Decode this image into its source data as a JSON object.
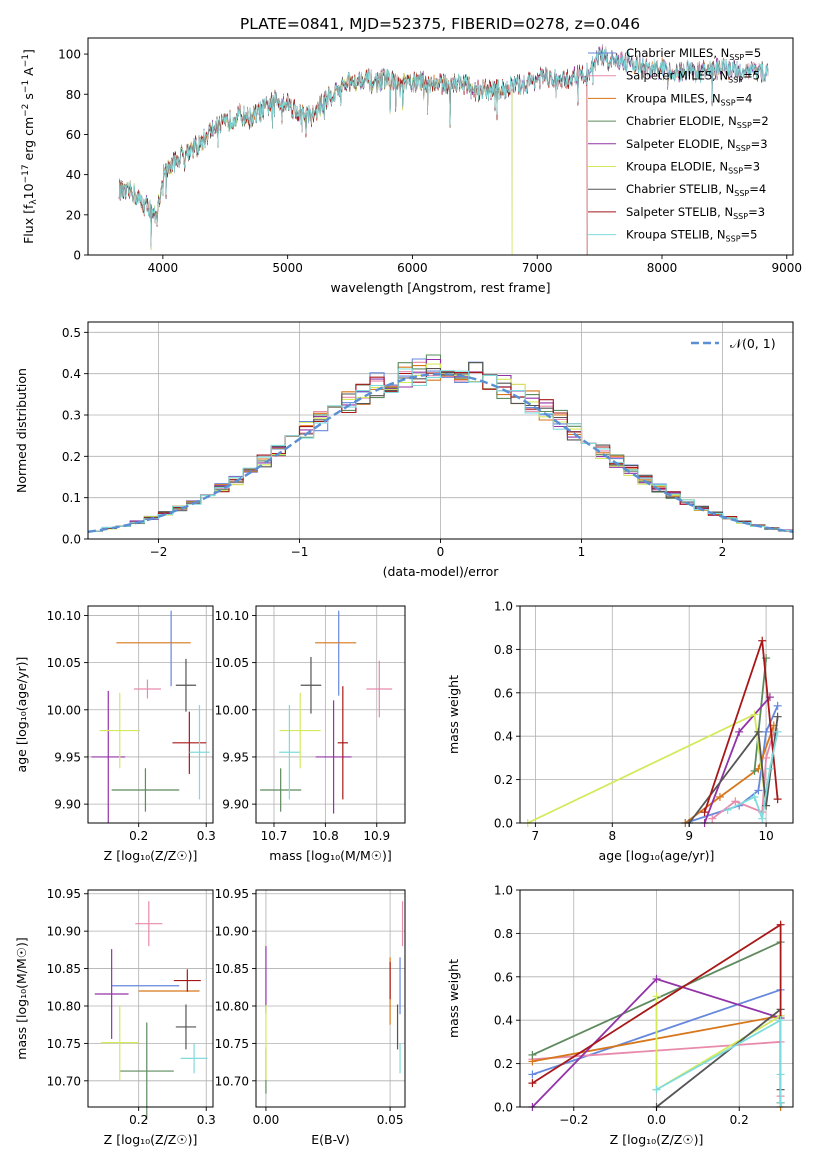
{
  "figure_title": "PLATE=0841, MJD=52375, FIBERID=0278, z=0.046",
  "series_styles": [
    {
      "name": "Chabrier MILES, N",
      "sub": "SSP",
      "tail": "=5",
      "color": "#6688dd"
    },
    {
      "name": "Salpeter MILES, N",
      "sub": "SSP",
      "tail": "=5",
      "color": "#e88aac"
    },
    {
      "name": "Kroupa MILES, N",
      "sub": "SSP",
      "tail": "=4",
      "color": "#d7761a"
    },
    {
      "name": "Chabrier ELODIE, N",
      "sub": "SSP",
      "tail": "=2",
      "color": "#5e8a5e"
    },
    {
      "name": "Salpeter ELODIE, N",
      "sub": "SSP",
      "tail": "=3",
      "color": "#9333a8"
    },
    {
      "name": "Kroupa ELODIE, N",
      "sub": "SSP",
      "tail": "=3",
      "color": "#d4ea5c"
    },
    {
      "name": "Chabrier STELIB, N",
      "sub": "SSP",
      "tail": "=4",
      "color": "#555555"
    },
    {
      "name": "Salpeter STELIB, N",
      "sub": "SSP",
      "tail": "=3",
      "color": "#a81818"
    },
    {
      "name": "Kroupa STELIB, N",
      "sub": "SSP",
      "tail": "=5",
      "color": "#7fdcdc"
    }
  ],
  "chart_data": [
    {
      "id": "spectrum",
      "type": "line",
      "xlabel": "wavelength [Angstrom, rest frame]",
      "ylabel_parts": [
        "Flux [f",
        "λ",
        "10",
        "−17",
        " erg cm",
        "−2",
        " s",
        "−1",
        " A",
        "−1",
        "]"
      ],
      "xlim": [
        3400,
        9050
      ],
      "ylim": [
        0,
        108
      ],
      "xticks": [
        4000,
        5000,
        6000,
        7000,
        8000,
        9000
      ],
      "yticks": [
        0,
        20,
        40,
        60,
        80,
        100
      ],
      "grid": false,
      "legend": "upper right",
      "continuum": {
        "x": [
          3650,
          3700,
          3750,
          3800,
          3850,
          3900,
          3950,
          4000,
          4100,
          4200,
          4300,
          4400,
          4500,
          4600,
          4700,
          4800,
          4900,
          5000,
          5100,
          5200,
          5300,
          5400,
          5500,
          5600,
          5700,
          5800,
          5900,
          6000,
          6100,
          6200,
          6300,
          6400,
          6500,
          6600,
          6700,
          6800,
          6900,
          7000,
          7100,
          7200,
          7300,
          7400,
          7500,
          7600,
          7700,
          7800,
          7900,
          8000,
          8100,
          8200,
          8300,
          8400,
          8500,
          8600,
          8700,
          8800
        ],
        "y": [
          33,
          30,
          32,
          28,
          25,
          24,
          18,
          40,
          47,
          52,
          55,
          63,
          65,
          70,
          68,
          72,
          77,
          76,
          70,
          69,
          77,
          82,
          86,
          88,
          86,
          88,
          84,
          86,
          86,
          85,
          85,
          86,
          82,
          82,
          82,
          84,
          85,
          88,
          88,
          86,
          89,
          90,
          100,
          96,
          97,
          95,
          92,
          93,
          90,
          92,
          91,
          92,
          93,
          91,
          92,
          91
        ]
      },
      "series_end_wavelength": [
        8850,
        8850,
        8850,
        6800,
        8850,
        6800,
        8850,
        7400,
        8850
      ]
    },
    {
      "id": "residual-histogram",
      "type": "bar",
      "xlabel": "(data-model)/error",
      "ylabel": "Normed distribution",
      "xlim": [
        -2.5,
        2.5
      ],
      "ylim": [
        0,
        0.525
      ],
      "xticks": [
        -2,
        -1,
        0,
        1,
        2
      ],
      "yticks": [
        0.0,
        0.1,
        0.2,
        0.3,
        0.4,
        0.5
      ],
      "grid": true,
      "legend": "upper right",
      "reference_curve": {
        "label": "𝒩(0, 1)",
        "color": "#5b8fd4",
        "mu": 0,
        "sigma": 1,
        "style": "dashed"
      },
      "bin_edges_range": [
        -2.5,
        2.5
      ],
      "bin_width": 0.1
    },
    {
      "id": "age-vs-metallicity",
      "type": "scatter",
      "xlabel": "Z [log₁₀(Z/Z☉)]",
      "ylabel": "age  [log₁₀(age/yr)]",
      "xlim": [
        0.125,
        0.31
      ],
      "ylim": [
        9.88,
        10.11
      ],
      "xticks": [
        0.2,
        0.3
      ],
      "yticks": [
        9.9,
        9.95,
        10.0,
        10.05,
        10.1
      ],
      "grid": true,
      "points": [
        {
          "x": 0.248,
          "y": 10.065,
          "xerr": 0.0,
          "yerr": 0.04
        },
        {
          "x": 0.213,
          "y": 10.022,
          "xerr": 0.02,
          "yerr": 0.01
        },
        {
          "x": 0.222,
          "y": 10.071,
          "xerr": 0.055,
          "yerr": 0.0
        },
        {
          "x": 0.21,
          "y": 9.915,
          "xerr": 0.05,
          "yerr": 0.023
        },
        {
          "x": 0.155,
          "y": 9.95,
          "xerr": 0.025,
          "yerr": 0.07
        },
        {
          "x": 0.172,
          "y": 9.978,
          "xerr": 0.03,
          "yerr": 0.04
        },
        {
          "x": 0.27,
          "y": 10.026,
          "xerr": 0.015,
          "yerr": 0.028
        },
        {
          "x": 0.275,
          "y": 9.965,
          "xerr": 0.025,
          "yerr": 0.033
        },
        {
          "x": 0.29,
          "y": 9.955,
          "xerr": 0.015,
          "yerr": 0.05
        }
      ]
    },
    {
      "id": "age-vs-mass",
      "type": "scatter",
      "xlabel": "mass [log₁₀(M/M☉)]",
      "ylabel": "",
      "xlim": [
        10.665,
        10.955
      ],
      "ylim": [
        9.88,
        10.11
      ],
      "xticks": [
        10.7,
        10.8,
        10.9
      ],
      "yticks": [
        9.9,
        9.95,
        10.0,
        10.05,
        10.1
      ],
      "grid": true,
      "points": [
        {
          "x": 10.826,
          "y": 10.06,
          "xerr": 0.0,
          "yerr": 0.045
        },
        {
          "x": 10.905,
          "y": 10.022,
          "xerr": 0.025,
          "yerr": 0.03
        },
        {
          "x": 10.82,
          "y": 10.071,
          "xerr": 0.04,
          "yerr": 0.0
        },
        {
          "x": 10.713,
          "y": 9.915,
          "xerr": 0.04,
          "yerr": 0.023
        },
        {
          "x": 10.816,
          "y": 9.95,
          "xerr": 0.035,
          "yerr": 0.06
        },
        {
          "x": 10.751,
          "y": 9.978,
          "xerr": 0.04,
          "yerr": 0.04
        },
        {
          "x": 10.772,
          "y": 10.026,
          "xerr": 0.02,
          "yerr": 0.03
        },
        {
          "x": 10.834,
          "y": 9.965,
          "xerr": 0.01,
          "yerr": 0.06
        },
        {
          "x": 10.73,
          "y": 9.955,
          "xerr": 0.02,
          "yerr": 0.05
        }
      ]
    },
    {
      "id": "mass-weight-vs-age",
      "type": "line",
      "xlabel": "age  [log₁₀(age/yr)]",
      "ylabel": "mass weight",
      "xlim": [
        6.8,
        10.35
      ],
      "ylim": [
        0,
        1.0
      ],
      "xticks": [
        7,
        8,
        9,
        10
      ],
      "yticks": [
        0.0,
        0.2,
        0.4,
        0.6,
        0.8,
        1.0
      ],
      "grid": true,
      "series": [
        {
          "x": [
            8.95,
            9.65,
            9.9,
            10.0,
            10.15
          ],
          "y": [
            0.0,
            0.08,
            0.15,
            0.42,
            0.54
          ]
        },
        {
          "x": [
            9.3,
            9.6,
            9.95,
            10.0,
            10.1
          ],
          "y": [
            0.02,
            0.1,
            0.05,
            0.3,
            0.42
          ]
        },
        {
          "x": [
            8.95,
            9.4,
            9.9,
            10.1
          ],
          "y": [
            0.0,
            0.12,
            0.25,
            0.45
          ]
        },
        {
          "x": [
            9.85,
            10.0
          ],
          "y": [
            0.24,
            0.76
          ]
        },
        {
          "x": [
            9.2,
            9.65,
            10.05
          ],
          "y": [
            0.0,
            0.42,
            0.58
          ]
        },
        {
          "x": [
            6.9,
            9.85,
            10.0
          ],
          "y": [
            0.0,
            0.5,
            0.08
          ]
        },
        {
          "x": [
            9.0,
            9.9,
            10.0,
            10.15
          ],
          "y": [
            0.0,
            0.42,
            0.08,
            0.49
          ]
        },
        {
          "x": [
            9.2,
            9.95,
            10.15
          ],
          "y": [
            0.05,
            0.84,
            0.11
          ]
        },
        {
          "x": [
            9.5,
            9.85,
            9.95,
            10.05,
            10.15
          ],
          "y": [
            0.06,
            0.12,
            0.02,
            0.25,
            0.42
          ]
        }
      ]
    },
    {
      "id": "mass-vs-metallicity",
      "type": "scatter",
      "xlabel": "Z [log₁₀(Z/Z☉)]",
      "ylabel": "mass [log₁₀(M/M☉)]",
      "xlim": [
        0.125,
        0.31
      ],
      "ylim": [
        10.665,
        10.955
      ],
      "xticks": [
        0.2,
        0.3
      ],
      "yticks": [
        10.7,
        10.75,
        10.8,
        10.85,
        10.9,
        10.95
      ],
      "grid": true,
      "points": [
        {
          "x": 0.21,
          "y": 10.827,
          "xerr": 0.05,
          "yerr": 0.0
        },
        {
          "x": 0.215,
          "y": 10.91,
          "xerr": 0.02,
          "yerr": 0.03
        },
        {
          "x": 0.245,
          "y": 10.82,
          "xerr": 0.045,
          "yerr": 0.0
        },
        {
          "x": 0.212,
          "y": 10.713,
          "xerr": 0.04,
          "yerr": 0.065
        },
        {
          "x": 0.16,
          "y": 10.816,
          "xerr": 0.025,
          "yerr": 0.06
        },
        {
          "x": 0.172,
          "y": 10.751,
          "xerr": 0.028,
          "yerr": 0.05
        },
        {
          "x": 0.27,
          "y": 10.772,
          "xerr": 0.015,
          "yerr": 0.03
        },
        {
          "x": 0.272,
          "y": 10.834,
          "xerr": 0.02,
          "yerr": 0.015
        },
        {
          "x": 0.282,
          "y": 10.73,
          "xerr": 0.02,
          "yerr": 0.02
        }
      ]
    },
    {
      "id": "mass-vs-extinction",
      "type": "scatter",
      "xlabel": "E(B-V)",
      "ylabel": "",
      "xlim": [
        -0.004,
        0.056
      ],
      "ylim": [
        10.665,
        10.955
      ],
      "xticks": [
        0.0,
        0.05
      ],
      "yticks": [
        10.7,
        10.75,
        10.8,
        10.85,
        10.9,
        10.95
      ],
      "grid": true,
      "points": [
        {
          "x": 0.054,
          "y": 10.827,
          "xerr": 0,
          "yerr": 0.038
        },
        {
          "x": 0.055,
          "y": 10.91,
          "xerr": 0,
          "yerr": 0.03
        },
        {
          "x": 0.05,
          "y": 10.82,
          "xerr": 0,
          "yerr": 0.045
        },
        {
          "x": 0.0,
          "y": 10.713,
          "xerr": 0,
          "yerr": 0.03
        },
        {
          "x": 0.0,
          "y": 10.835,
          "xerr": 0,
          "yerr": 0.045
        },
        {
          "x": 0.0,
          "y": 10.751,
          "xerr": 0,
          "yerr": 0.05
        },
        {
          "x": 0.053,
          "y": 10.772,
          "xerr": 0,
          "yerr": 0.03
        },
        {
          "x": 0.05,
          "y": 10.834,
          "xerr": 0,
          "yerr": 0.025
        },
        {
          "x": 0.054,
          "y": 10.73,
          "xerr": 0,
          "yerr": 0.02
        }
      ]
    },
    {
      "id": "mass-weight-vs-metallicity",
      "type": "line",
      "xlabel": "Z [log₁₀(Z/Z☉)]",
      "ylabel": "mass weight",
      "xlim": [
        -0.33,
        0.33
      ],
      "ylim": [
        0,
        1.0
      ],
      "xticks": [
        -0.2,
        0.0,
        0.2
      ],
      "yticks": [
        0.0,
        0.2,
        0.4,
        0.6,
        0.8,
        1.0
      ],
      "grid": true,
      "series": [
        {
          "x": [
            -0.3,
            0.3
          ],
          "y": [
            0.15,
            0.54
          ]
        },
        {
          "x": [
            -0.3,
            0.3,
            0.3
          ],
          "y": [
            0.22,
            0.3,
            0.05
          ]
        },
        {
          "x": [
            -0.3,
            0.3,
            0.3
          ],
          "y": [
            0.21,
            0.42,
            0.0
          ]
        },
        {
          "x": [
            -0.3,
            0.3
          ],
          "y": [
            0.24,
            0.76
          ]
        },
        {
          "x": [
            -0.3,
            0.0,
            0.3
          ],
          "y": [
            0.0,
            0.59,
            0.41
          ]
        },
        {
          "x": [
            0.0,
            0.0,
            0.3
          ],
          "y": [
            0.51,
            0.08,
            0.42
          ]
        },
        {
          "x": [
            0.0,
            0.3,
            0.3
          ],
          "y": [
            0.0,
            0.45,
            0.08
          ]
        },
        {
          "x": [
            -0.3,
            0.3,
            0.3
          ],
          "y": [
            0.11,
            0.84,
            0.02
          ]
        },
        {
          "x": [
            0.0,
            0.3,
            0.3,
            0.3
          ],
          "y": [
            0.08,
            0.4,
            0.15,
            0.02
          ]
        }
      ]
    }
  ]
}
